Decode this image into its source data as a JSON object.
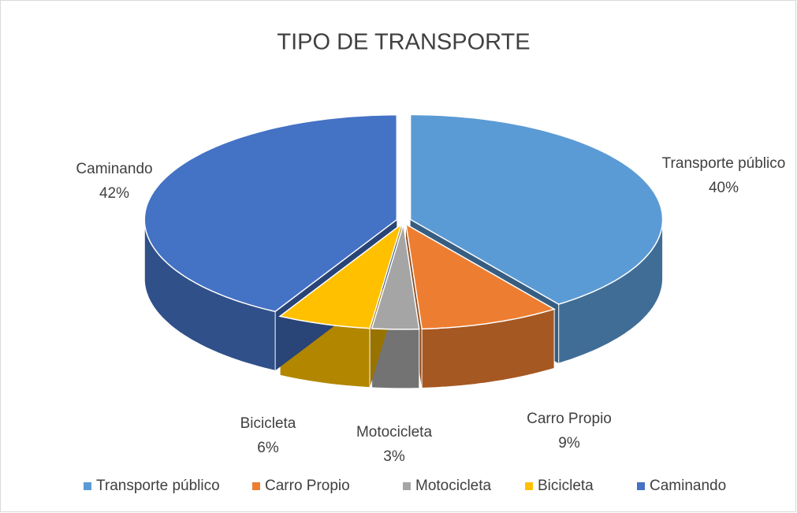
{
  "chart_data": {
    "type": "pie3d",
    "title": "TIPO DE TRANSPORTE",
    "categories": [
      "Transporte público",
      "Carro Propio",
      "Motocicleta",
      "Bicicleta",
      "Caminando"
    ],
    "values": [
      40,
      9,
      3,
      6,
      42
    ],
    "value_labels": [
      "40%",
      "9%",
      "3%",
      "6%",
      "42%"
    ],
    "colors": [
      "#5b9bd5",
      "#ed7d31",
      "#a5a5a5",
      "#ffc000",
      "#4472c4"
    ],
    "legend": "bottom"
  }
}
